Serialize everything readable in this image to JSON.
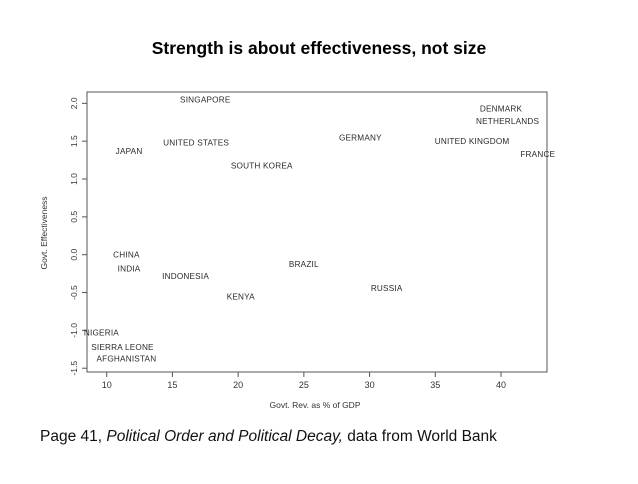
{
  "slide": {
    "title": "Strength is about effectiveness, not size",
    "caption_prefix": "Page 41, ",
    "caption_book": "Political Order and Political Decay,",
    "caption_suffix": " data from World Bank"
  },
  "chart_data": {
    "type": "scatter",
    "title": "Strength is about effectiveness, not size",
    "xlabel": "Govt. Rev. as % of GDP",
    "ylabel": "Govt. Effectiveness",
    "xlim": [
      8.5,
      43.5
    ],
    "ylim": [
      -1.55,
      2.15
    ],
    "xticks": [
      10,
      15,
      20,
      25,
      30,
      35,
      40
    ],
    "xtick_labels": [
      "10",
      "15",
      "20",
      "25",
      "30",
      "35",
      "40"
    ],
    "yticks": [
      -1.5,
      -1.0,
      -0.5,
      0.0,
      0.5,
      1.0,
      1.5,
      2.0
    ],
    "ytick_labels": [
      "-1.5",
      "-1.0",
      "-0.5",
      "0.0",
      "0.5",
      "1.0",
      "1.5",
      "2.0"
    ],
    "grid": false,
    "points": [
      {
        "label": "SINGAPORE",
        "x": 17.5,
        "y": 2.05
      },
      {
        "label": "DENMARK",
        "x": 40.0,
        "y": 1.93
      },
      {
        "label": "NETHERLANDS",
        "x": 40.5,
        "y": 1.77
      },
      {
        "label": "GERMANY",
        "x": 29.3,
        "y": 1.55
      },
      {
        "label": "UNITED KINGDOM",
        "x": 37.8,
        "y": 1.5
      },
      {
        "label": "UNITED STATES",
        "x": 16.8,
        "y": 1.48
      },
      {
        "label": "JAPAN",
        "x": 11.7,
        "y": 1.37
      },
      {
        "label": "FRANCE",
        "x": 42.8,
        "y": 1.33
      },
      {
        "label": "SOUTH KOREA",
        "x": 21.8,
        "y": 1.18
      },
      {
        "label": "CHINA",
        "x": 11.5,
        "y": 0.0
      },
      {
        "label": "INDIA",
        "x": 11.7,
        "y": -0.18
      },
      {
        "label": "BRAZIL",
        "x": 25.0,
        "y": -0.12
      },
      {
        "label": "INDONESIA",
        "x": 16.0,
        "y": -0.28
      },
      {
        "label": "RUSSIA",
        "x": 31.3,
        "y": -0.44
      },
      {
        "label": "KENYA",
        "x": 20.2,
        "y": -0.55
      },
      {
        "label": "NIGERIA",
        "x": 9.6,
        "y": -1.03
      },
      {
        "label": "SIERRA LEONE",
        "x": 11.2,
        "y": -1.22
      },
      {
        "label": "AFGHANISTAN",
        "x": 11.5,
        "y": -1.37
      }
    ]
  }
}
